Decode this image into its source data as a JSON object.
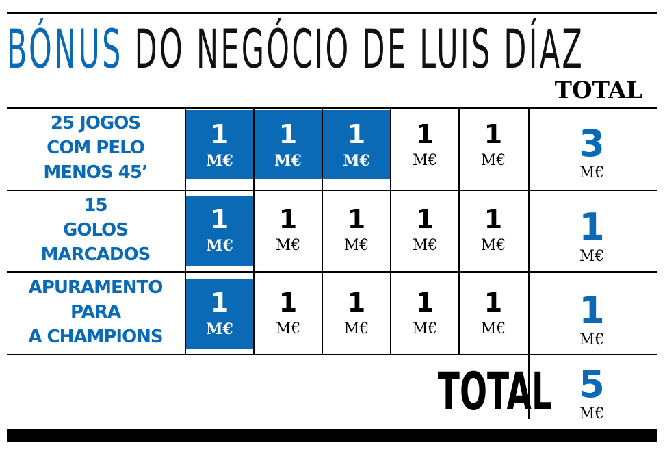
{
  "title": {
    "part1": "BÓNUS",
    "part2": "DO NEGÓCIO DE LUIS DÍAZ"
  },
  "total_header": "TOTAL",
  "rows": [
    {
      "label_lines": [
        "25 JOGOS",
        "COM PELO",
        "MENOS 45’"
      ],
      "cells": [
        "1",
        "1",
        "1",
        "1",
        "1"
      ],
      "unit": "M€",
      "filled": 3,
      "total": "3",
      "total_unit": "M€"
    },
    {
      "label_lines": [
        "15",
        "GOLOS",
        "MARCADOS"
      ],
      "cells": [
        "1",
        "1",
        "1",
        "1",
        "1"
      ],
      "unit": "M€",
      "filled": 1,
      "total": "1",
      "total_unit": "M€"
    },
    {
      "label_lines": [
        "APURAMENTO",
        "PARA",
        "A CHAMPIONS"
      ],
      "cells": [
        "1",
        "1",
        "1",
        "1",
        "1"
      ],
      "unit": "M€",
      "filled": 1,
      "total": "1",
      "total_unit": "M€"
    }
  ],
  "grand_total": {
    "label": "TOTAL",
    "value": "5",
    "unit": "M€"
  },
  "colors": {
    "accent": "#0a6ab5",
    "text": "#000000"
  }
}
